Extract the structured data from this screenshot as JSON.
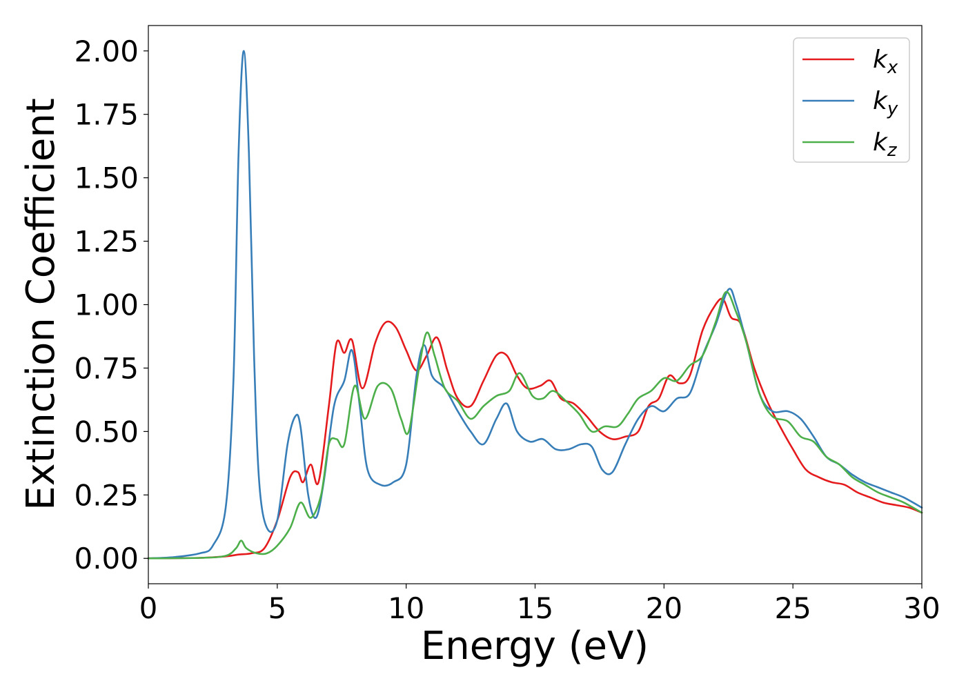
{
  "chart_data": {
    "type": "line",
    "title": "",
    "xlabel": "Energy (eV)",
    "ylabel": "Extinction Coefficient",
    "xlim": [
      0,
      30
    ],
    "ylim": [
      -0.1,
      2.1
    ],
    "xticks": [
      "0",
      "5",
      "10",
      "15",
      "20",
      "25",
      "30"
    ],
    "yticks": [
      "0.00",
      "0.25",
      "0.50",
      "0.75",
      "1.00",
      "1.25",
      "1.50",
      "1.75",
      "2.00"
    ],
    "grid": false,
    "legend_position": "top-right",
    "series": [
      {
        "name": "k",
        "subscript": "x",
        "color": "#e41a1c",
        "points": [
          [
            0,
            0
          ],
          [
            2,
            0.002
          ],
          [
            3,
            0.008
          ],
          [
            3.5,
            0.015
          ],
          [
            4,
            0.02
          ],
          [
            4.5,
            0.04
          ],
          [
            5,
            0.15
          ],
          [
            5.5,
            0.32
          ],
          [
            5.8,
            0.34
          ],
          [
            6,
            0.3
          ],
          [
            6.3,
            0.37
          ],
          [
            6.6,
            0.3
          ],
          [
            7,
            0.6
          ],
          [
            7.3,
            0.85
          ],
          [
            7.6,
            0.81
          ],
          [
            7.9,
            0.86
          ],
          [
            8.3,
            0.67
          ],
          [
            8.8,
            0.85
          ],
          [
            9.2,
            0.93
          ],
          [
            9.6,
            0.91
          ],
          [
            10,
            0.82
          ],
          [
            10.4,
            0.74
          ],
          [
            10.8,
            0.8
          ],
          [
            11.2,
            0.87
          ],
          [
            11.6,
            0.74
          ],
          [
            12,
            0.63
          ],
          [
            12.5,
            0.6
          ],
          [
            13,
            0.7
          ],
          [
            13.5,
            0.8
          ],
          [
            13.9,
            0.8
          ],
          [
            14.3,
            0.72
          ],
          [
            14.7,
            0.67
          ],
          [
            15.2,
            0.68
          ],
          [
            15.6,
            0.7
          ],
          [
            16,
            0.63
          ],
          [
            16.5,
            0.61
          ],
          [
            17,
            0.56
          ],
          [
            17.5,
            0.5
          ],
          [
            18,
            0.47
          ],
          [
            18.5,
            0.48
          ],
          [
            19,
            0.5
          ],
          [
            19.4,
            0.6
          ],
          [
            19.8,
            0.63
          ],
          [
            20.2,
            0.72
          ],
          [
            20.6,
            0.69
          ],
          [
            21,
            0.72
          ],
          [
            21.5,
            0.9
          ],
          [
            22,
            1.0
          ],
          [
            22.3,
            1.02
          ],
          [
            22.6,
            0.95
          ],
          [
            23,
            0.92
          ],
          [
            23.5,
            0.75
          ],
          [
            24,
            0.62
          ],
          [
            24.5,
            0.52
          ],
          [
            25,
            0.43
          ],
          [
            25.5,
            0.35
          ],
          [
            26,
            0.32
          ],
          [
            26.5,
            0.3
          ],
          [
            27,
            0.29
          ],
          [
            27.5,
            0.26
          ],
          [
            28,
            0.24
          ],
          [
            28.5,
            0.22
          ],
          [
            29,
            0.21
          ],
          [
            29.5,
            0.2
          ],
          [
            30,
            0.18
          ]
        ]
      },
      {
        "name": "k",
        "subscript": "y",
        "color": "#377eb8",
        "points": [
          [
            0,
            0
          ],
          [
            1,
            0.005
          ],
          [
            2,
            0.02
          ],
          [
            2.5,
            0.05
          ],
          [
            3,
            0.2
          ],
          [
            3.3,
            0.7
          ],
          [
            3.5,
            1.6
          ],
          [
            3.7,
            2.0
          ],
          [
            3.9,
            1.6
          ],
          [
            4.1,
            0.8
          ],
          [
            4.3,
            0.3
          ],
          [
            4.6,
            0.12
          ],
          [
            5,
            0.15
          ],
          [
            5.4,
            0.45
          ],
          [
            5.7,
            0.56
          ],
          [
            5.9,
            0.52
          ],
          [
            6.2,
            0.25
          ],
          [
            6.5,
            0.16
          ],
          [
            6.8,
            0.3
          ],
          [
            7.2,
            0.6
          ],
          [
            7.6,
            0.7
          ],
          [
            7.9,
            0.82
          ],
          [
            8.2,
            0.6
          ],
          [
            8.5,
            0.35
          ],
          [
            9,
            0.29
          ],
          [
            9.5,
            0.3
          ],
          [
            10,
            0.37
          ],
          [
            10.4,
            0.72
          ],
          [
            10.7,
            0.84
          ],
          [
            11,
            0.72
          ],
          [
            11.5,
            0.67
          ],
          [
            12,
            0.58
          ],
          [
            12.5,
            0.5
          ],
          [
            13,
            0.45
          ],
          [
            13.5,
            0.55
          ],
          [
            13.9,
            0.61
          ],
          [
            14.3,
            0.5
          ],
          [
            14.8,
            0.46
          ],
          [
            15.3,
            0.47
          ],
          [
            15.8,
            0.43
          ],
          [
            16.3,
            0.43
          ],
          [
            16.8,
            0.45
          ],
          [
            17.2,
            0.44
          ],
          [
            17.6,
            0.35
          ],
          [
            18,
            0.34
          ],
          [
            18.5,
            0.45
          ],
          [
            19,
            0.55
          ],
          [
            19.5,
            0.6
          ],
          [
            20,
            0.58
          ],
          [
            20.5,
            0.63
          ],
          [
            21,
            0.65
          ],
          [
            21.5,
            0.8
          ],
          [
            22,
            0.92
          ],
          [
            22.5,
            1.06
          ],
          [
            22.8,
            1.0
          ],
          [
            23.2,
            0.85
          ],
          [
            23.7,
            0.65
          ],
          [
            24.2,
            0.58
          ],
          [
            24.8,
            0.58
          ],
          [
            25.3,
            0.55
          ],
          [
            25.8,
            0.48
          ],
          [
            26.3,
            0.4
          ],
          [
            26.8,
            0.37
          ],
          [
            27.3,
            0.33
          ],
          [
            27.8,
            0.3
          ],
          [
            28.3,
            0.28
          ],
          [
            28.8,
            0.26
          ],
          [
            29.3,
            0.24
          ],
          [
            30,
            0.2
          ]
        ]
      },
      {
        "name": "k",
        "subscript": "z",
        "color": "#4daf4a",
        "points": [
          [
            0,
            0
          ],
          [
            2,
            0.002
          ],
          [
            3,
            0.01
          ],
          [
            3.4,
            0.04
          ],
          [
            3.6,
            0.07
          ],
          [
            3.8,
            0.04
          ],
          [
            4.2,
            0.02
          ],
          [
            4.6,
            0.02
          ],
          [
            5,
            0.05
          ],
          [
            5.5,
            0.12
          ],
          [
            5.9,
            0.22
          ],
          [
            6.3,
            0.16
          ],
          [
            6.7,
            0.25
          ],
          [
            7,
            0.45
          ],
          [
            7.3,
            0.47
          ],
          [
            7.6,
            0.45
          ],
          [
            8,
            0.68
          ],
          [
            8.4,
            0.55
          ],
          [
            8.9,
            0.68
          ],
          [
            9.4,
            0.67
          ],
          [
            9.8,
            0.55
          ],
          [
            10.1,
            0.5
          ],
          [
            10.5,
            0.75
          ],
          [
            10.8,
            0.89
          ],
          [
            11.1,
            0.8
          ],
          [
            11.5,
            0.67
          ],
          [
            12,
            0.62
          ],
          [
            12.5,
            0.55
          ],
          [
            13,
            0.6
          ],
          [
            13.5,
            0.64
          ],
          [
            14,
            0.66
          ],
          [
            14.4,
            0.73
          ],
          [
            14.9,
            0.64
          ],
          [
            15.3,
            0.63
          ],
          [
            15.7,
            0.66
          ],
          [
            16.2,
            0.62
          ],
          [
            16.7,
            0.57
          ],
          [
            17.2,
            0.5
          ],
          [
            17.7,
            0.52
          ],
          [
            18.2,
            0.52
          ],
          [
            18.6,
            0.57
          ],
          [
            19,
            0.63
          ],
          [
            19.5,
            0.66
          ],
          [
            20,
            0.71
          ],
          [
            20.5,
            0.7
          ],
          [
            21,
            0.76
          ],
          [
            21.5,
            0.8
          ],
          [
            22,
            0.93
          ],
          [
            22.4,
            1.05
          ],
          [
            22.8,
            0.97
          ],
          [
            23.2,
            0.85
          ],
          [
            23.7,
            0.65
          ],
          [
            24.2,
            0.56
          ],
          [
            24.8,
            0.54
          ],
          [
            25.3,
            0.48
          ],
          [
            25.8,
            0.46
          ],
          [
            26.3,
            0.4
          ],
          [
            26.8,
            0.37
          ],
          [
            27.3,
            0.32
          ],
          [
            27.8,
            0.29
          ],
          [
            28.3,
            0.26
          ],
          [
            28.8,
            0.24
          ],
          [
            29.3,
            0.22
          ],
          [
            30,
            0.18
          ]
        ]
      }
    ]
  }
}
